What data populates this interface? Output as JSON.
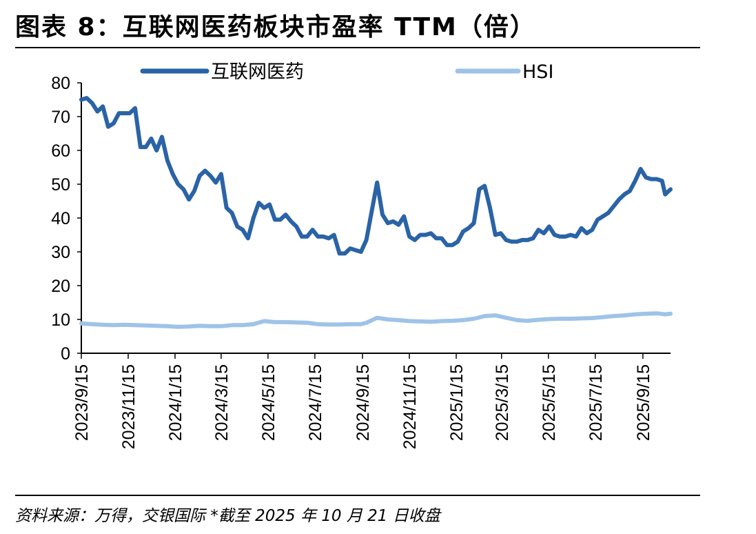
{
  "figure": {
    "title": "图表 8：互联网医药板块市盈率 TTM（倍）",
    "source": "资料来源：万得，交银国际 *截至 2025 年 10 月 21 日收盘"
  },
  "colors": {
    "series_internet_medical": "#2a63a6",
    "series_hsi": "#9fc3e8",
    "axis": "#000000"
  },
  "chart_data": {
    "type": "line",
    "title": "",
    "xlabel": "",
    "ylabel": "",
    "ylim": [
      0,
      80
    ],
    "yticks": [
      0,
      10,
      20,
      30,
      40,
      50,
      60,
      70,
      80
    ],
    "grid": false,
    "legend_position": "top",
    "x_range": [
      "2023-09-15",
      "2025-10-21"
    ],
    "x_tick_labels": [
      "2023/9/15",
      "2023/11/15",
      "2024/1/15",
      "2024/3/15",
      "2024/5/15",
      "2024/7/15",
      "2024/9/15",
      "2024/11/15",
      "2025/1/15",
      "2025/3/15",
      "2025/5/15",
      "2025/7/15",
      "2025/9/15"
    ],
    "series": [
      {
        "name": "互联网医药",
        "points": [
          [
            "2023-09-15",
            75
          ],
          [
            "2023-09-22",
            75.5
          ],
          [
            "2023-09-29",
            74
          ],
          [
            "2023-10-06",
            71.5
          ],
          [
            "2023-10-13",
            73
          ],
          [
            "2023-10-20",
            67
          ],
          [
            "2023-10-27",
            68
          ],
          [
            "2023-11-03",
            71
          ],
          [
            "2023-11-10",
            71
          ],
          [
            "2023-11-17",
            71
          ],
          [
            "2023-11-24",
            72.5
          ],
          [
            "2023-12-01",
            61
          ],
          [
            "2023-12-08",
            61
          ],
          [
            "2023-12-15",
            63.5
          ],
          [
            "2023-12-22",
            60
          ],
          [
            "2023-12-29",
            64
          ],
          [
            "2024-01-05",
            57
          ],
          [
            "2024-01-12",
            53
          ],
          [
            "2024-01-19",
            50
          ],
          [
            "2024-01-26",
            48.5
          ],
          [
            "2024-02-02",
            45.5
          ],
          [
            "2024-02-09",
            48
          ],
          [
            "2024-02-16",
            52.5
          ],
          [
            "2024-02-23",
            54
          ],
          [
            "2024-03-01",
            52.5
          ],
          [
            "2024-03-08",
            50.5
          ],
          [
            "2024-03-15",
            53
          ],
          [
            "2024-03-22",
            43
          ],
          [
            "2024-03-29",
            41.5
          ],
          [
            "2024-04-05",
            37.5
          ],
          [
            "2024-04-12",
            36.5
          ],
          [
            "2024-04-19",
            34
          ],
          [
            "2024-04-26",
            40
          ],
          [
            "2024-05-03",
            44.5
          ],
          [
            "2024-05-10",
            43
          ],
          [
            "2024-05-17",
            44
          ],
          [
            "2024-05-24",
            39.5
          ],
          [
            "2024-05-31",
            39.5
          ],
          [
            "2024-06-07",
            41
          ],
          [
            "2024-06-14",
            39
          ],
          [
            "2024-06-21",
            37.5
          ],
          [
            "2024-06-28",
            34.5
          ],
          [
            "2024-07-05",
            34.5
          ],
          [
            "2024-07-12",
            36.5
          ],
          [
            "2024-07-19",
            34.5
          ],
          [
            "2024-07-26",
            34.5
          ],
          [
            "2024-08-02",
            34
          ],
          [
            "2024-08-09",
            35
          ],
          [
            "2024-08-16",
            29.5
          ],
          [
            "2024-08-23",
            29.5
          ],
          [
            "2024-08-30",
            31
          ],
          [
            "2024-09-06",
            30.5
          ],
          [
            "2024-09-13",
            30
          ],
          [
            "2024-09-20",
            33.5
          ],
          [
            "2024-09-27",
            42
          ],
          [
            "2024-10-04",
            50.5
          ],
          [
            "2024-10-11",
            41
          ],
          [
            "2024-10-18",
            38.5
          ],
          [
            "2024-10-25",
            39
          ],
          [
            "2024-11-01",
            38
          ],
          [
            "2024-11-08",
            40.5
          ],
          [
            "2024-11-15",
            34.5
          ],
          [
            "2024-11-22",
            33.5
          ],
          [
            "2024-11-29",
            35
          ],
          [
            "2024-12-06",
            35
          ],
          [
            "2024-12-13",
            35.5
          ],
          [
            "2024-12-20",
            34
          ],
          [
            "2024-12-27",
            34
          ],
          [
            "2025-01-03",
            32
          ],
          [
            "2025-01-10",
            32
          ],
          [
            "2025-01-17",
            33
          ],
          [
            "2025-01-24",
            36
          ],
          [
            "2025-01-31",
            37
          ],
          [
            "2025-02-07",
            38.5
          ],
          [
            "2025-02-14",
            48.5
          ],
          [
            "2025-02-21",
            49.5
          ],
          [
            "2025-02-28",
            43
          ],
          [
            "2025-03-07",
            35
          ],
          [
            "2025-03-14",
            35.5
          ],
          [
            "2025-03-21",
            33.5
          ],
          [
            "2025-03-28",
            33
          ],
          [
            "2025-04-04",
            33
          ],
          [
            "2025-04-11",
            33.5
          ],
          [
            "2025-04-18",
            33.5
          ],
          [
            "2025-04-25",
            34
          ],
          [
            "2025-05-02",
            36.5
          ],
          [
            "2025-05-09",
            35.5
          ],
          [
            "2025-05-16",
            37.5
          ],
          [
            "2025-05-23",
            35
          ],
          [
            "2025-05-30",
            34.5
          ],
          [
            "2025-06-06",
            34.5
          ],
          [
            "2025-06-13",
            35
          ],
          [
            "2025-06-20",
            34.5
          ],
          [
            "2025-06-27",
            37
          ],
          [
            "2025-07-04",
            35.5
          ],
          [
            "2025-07-11",
            36.5
          ],
          [
            "2025-07-18",
            39.5
          ],
          [
            "2025-07-25",
            40.5
          ],
          [
            "2025-08-01",
            41.5
          ],
          [
            "2025-08-08",
            43.5
          ],
          [
            "2025-08-15",
            45.5
          ],
          [
            "2025-08-22",
            47
          ],
          [
            "2025-08-29",
            48
          ],
          [
            "2025-09-05",
            51
          ],
          [
            "2025-09-12",
            54.5
          ],
          [
            "2025-09-19",
            52
          ],
          [
            "2025-09-26",
            51.5
          ],
          [
            "2025-10-03",
            51.5
          ],
          [
            "2025-10-10",
            51
          ],
          [
            "2025-10-14",
            47
          ],
          [
            "2025-10-21",
            48.5
          ]
        ]
      },
      {
        "name": "HSI",
        "points": [
          [
            "2023-09-15",
            8.8
          ],
          [
            "2023-09-29",
            8.6
          ],
          [
            "2023-10-13",
            8.4
          ],
          [
            "2023-10-27",
            8.3
          ],
          [
            "2023-11-10",
            8.4
          ],
          [
            "2023-11-24",
            8.3
          ],
          [
            "2023-12-08",
            8.2
          ],
          [
            "2023-12-22",
            8.1
          ],
          [
            "2024-01-05",
            8.0
          ],
          [
            "2024-01-19",
            7.8
          ],
          [
            "2024-02-02",
            7.9
          ],
          [
            "2024-02-16",
            8.1
          ],
          [
            "2024-03-01",
            8.0
          ],
          [
            "2024-03-15",
            8.0
          ],
          [
            "2024-03-29",
            8.3
          ],
          [
            "2024-04-12",
            8.3
          ],
          [
            "2024-04-26",
            8.6
          ],
          [
            "2024-05-10",
            9.5
          ],
          [
            "2024-05-24",
            9.2
          ],
          [
            "2024-06-07",
            9.2
          ],
          [
            "2024-06-21",
            9.1
          ],
          [
            "2024-07-05",
            9.0
          ],
          [
            "2024-07-19",
            8.6
          ],
          [
            "2024-08-02",
            8.5
          ],
          [
            "2024-08-16",
            8.5
          ],
          [
            "2024-08-30",
            8.6
          ],
          [
            "2024-09-13",
            8.6
          ],
          [
            "2024-09-20",
            9.0
          ],
          [
            "2024-10-04",
            10.5
          ],
          [
            "2024-10-18",
            10.0
          ],
          [
            "2024-11-01",
            9.8
          ],
          [
            "2024-11-15",
            9.5
          ],
          [
            "2024-11-29",
            9.4
          ],
          [
            "2024-12-13",
            9.3
          ],
          [
            "2024-12-27",
            9.5
          ],
          [
            "2025-01-10",
            9.6
          ],
          [
            "2025-01-24",
            9.8
          ],
          [
            "2025-02-07",
            10.2
          ],
          [
            "2025-02-21",
            11.0
          ],
          [
            "2025-03-07",
            11.2
          ],
          [
            "2025-03-21",
            10.5
          ],
          [
            "2025-04-04",
            9.8
          ],
          [
            "2025-04-18",
            9.6
          ],
          [
            "2025-05-02",
            9.9
          ],
          [
            "2025-05-16",
            10.1
          ],
          [
            "2025-05-30",
            10.2
          ],
          [
            "2025-06-13",
            10.2
          ],
          [
            "2025-06-27",
            10.3
          ],
          [
            "2025-07-11",
            10.4
          ],
          [
            "2025-07-25",
            10.7
          ],
          [
            "2025-08-08",
            11.0
          ],
          [
            "2025-08-22",
            11.2
          ],
          [
            "2025-09-05",
            11.5
          ],
          [
            "2025-09-19",
            11.7
          ],
          [
            "2025-10-03",
            11.8
          ],
          [
            "2025-10-14",
            11.5
          ],
          [
            "2025-10-21",
            11.7
          ]
        ]
      }
    ]
  }
}
